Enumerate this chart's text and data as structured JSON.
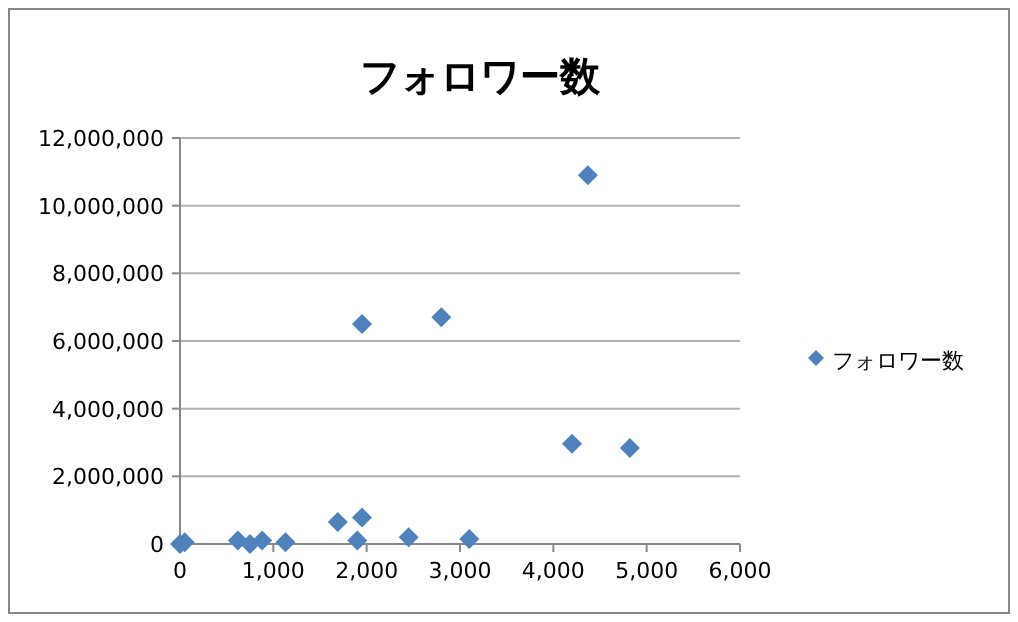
{
  "chart_data": {
    "type": "scatter",
    "title": "フォロワー数",
    "series": [
      {
        "name": "フォロワー数",
        "color": "#4f81bd",
        "x": [
          0,
          50,
          620,
          750,
          880,
          1130,
          1690,
          1900,
          1950,
          1950,
          2450,
          2800,
          3100,
          4200,
          4370,
          4820
        ],
        "values": [
          0,
          50000,
          100000,
          0,
          100000,
          50000,
          650000,
          100000,
          780000,
          6500000,
          200000,
          6700000,
          150000,
          2960000,
          10900000,
          2840000
        ]
      }
    ],
    "xlim": [
      0,
      6000
    ],
    "xticks": [
      {
        "value": 0,
        "label": "0"
      },
      {
        "value": 1000,
        "label": "1,000"
      },
      {
        "value": 2000,
        "label": "2,000"
      },
      {
        "value": 3000,
        "label": "3,000"
      },
      {
        "value": 4000,
        "label": "4,000"
      },
      {
        "value": 5000,
        "label": "5,000"
      },
      {
        "value": 6000,
        "label": "6,000"
      }
    ],
    "ylim": [
      0,
      12000000
    ],
    "yticks": [
      {
        "value": 0,
        "label": "0"
      },
      {
        "value": 2000000,
        "label": "2,000,000"
      },
      {
        "value": 4000000,
        "label": "4,000,000"
      },
      {
        "value": 6000000,
        "label": "6,000,000"
      },
      {
        "value": 8000000,
        "label": "8,000,000"
      },
      {
        "value": 10000000,
        "label": "10,000,000"
      },
      {
        "value": 12000000,
        "label": "12,000,000"
      }
    ],
    "grid": "y",
    "legend": "right",
    "marker": "diamond"
  }
}
